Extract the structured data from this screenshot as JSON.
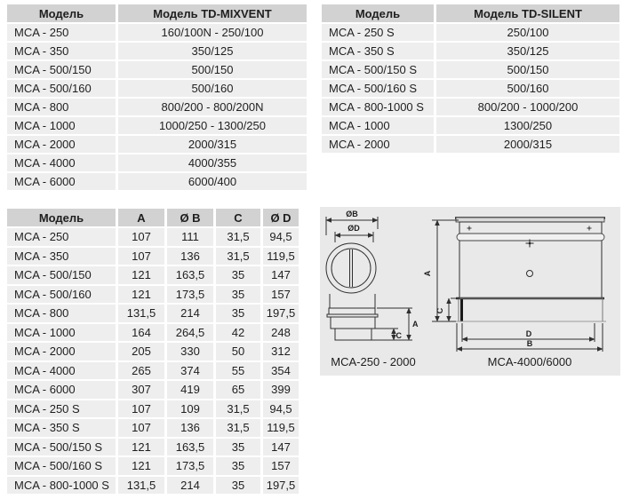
{
  "colors": {
    "header_bg": "#d2d2d2",
    "row_bg": "#eeeeee",
    "text": "#1f1f1f",
    "panel_bg": "#e9e9e9",
    "line": "#2f2f2f"
  },
  "tables": {
    "mixvent": {
      "headers": [
        "Модель",
        "Модель TD-MIXVENT"
      ],
      "rows": [
        [
          "MCA - 250",
          "160/100N - 250/100"
        ],
        [
          "MCA - 350",
          "350/125"
        ],
        [
          "MCA - 500/150",
          "500/150"
        ],
        [
          "MCA - 500/160",
          "500/160"
        ],
        [
          "MCA - 800",
          "800/200 - 800/200N"
        ],
        [
          "MCA - 1000",
          "1000/250 - 1300/250"
        ],
        [
          "MCA - 2000",
          "2000/315"
        ],
        [
          "MCA - 4000",
          "4000/355"
        ],
        [
          "MCA - 6000",
          "6000/400"
        ]
      ]
    },
    "silent": {
      "headers": [
        "Модель",
        "Модель TD-SILENT"
      ],
      "rows": [
        [
          "MCA - 250 S",
          "250/100"
        ],
        [
          "MCA - 350 S",
          "350/125"
        ],
        [
          "MCA - 500/150 S",
          "500/150"
        ],
        [
          "MCA - 500/160 S",
          "500/160"
        ],
        [
          "MCA - 800-1000 S",
          "800/200 - 1000/200"
        ],
        [
          "MCA - 1000",
          "1300/250"
        ],
        [
          "MCA - 2000",
          "2000/315"
        ]
      ]
    },
    "dimensions": {
      "headers": [
        "Модель",
        "A",
        "Ø B",
        "C",
        "Ø D"
      ],
      "rows": [
        [
          "MCA - 250",
          "107",
          "111",
          "31,5",
          "94,5"
        ],
        [
          "MCA - 350",
          "107",
          "136",
          "31,5",
          "119,5"
        ],
        [
          "MCA - 500/150",
          "121",
          "163,5",
          "35",
          "147"
        ],
        [
          "MCA - 500/160",
          "121",
          "173,5",
          "35",
          "157"
        ],
        [
          "MCA - 800",
          "131,5",
          "214",
          "35",
          "197,5"
        ],
        [
          "MCA - 1000",
          "164",
          "264,5",
          "42",
          "248"
        ],
        [
          "MCA - 2000",
          "205",
          "330",
          "50",
          "312"
        ],
        [
          "MCA - 4000",
          "265",
          "374",
          "55",
          "354"
        ],
        [
          "MCA - 6000",
          "307",
          "419",
          "65",
          "399"
        ],
        [
          "MCA - 250 S",
          "107",
          "109",
          "31,5",
          "94,5"
        ],
        [
          "MCA - 350 S",
          "107",
          "136",
          "31,5",
          "119,5"
        ],
        [
          "MCA - 500/150 S",
          "121",
          "163,5",
          "35",
          "147"
        ],
        [
          "MCA - 500/160 S",
          "121",
          "173,5",
          "35",
          "157"
        ],
        [
          "MCA - 800-1000 S",
          "131,5",
          "214",
          "35",
          "197,5"
        ]
      ]
    }
  },
  "diagram": {
    "front_view_caption": "MCA-250 - 2000",
    "side_view_caption": "MCA-4000/6000",
    "dim_labels": {
      "ob": "ØB",
      "od": "ØD",
      "a_left": "A",
      "c_left": "C",
      "a_right": "A",
      "c_right": "C",
      "d": "D",
      "b": "B"
    }
  }
}
